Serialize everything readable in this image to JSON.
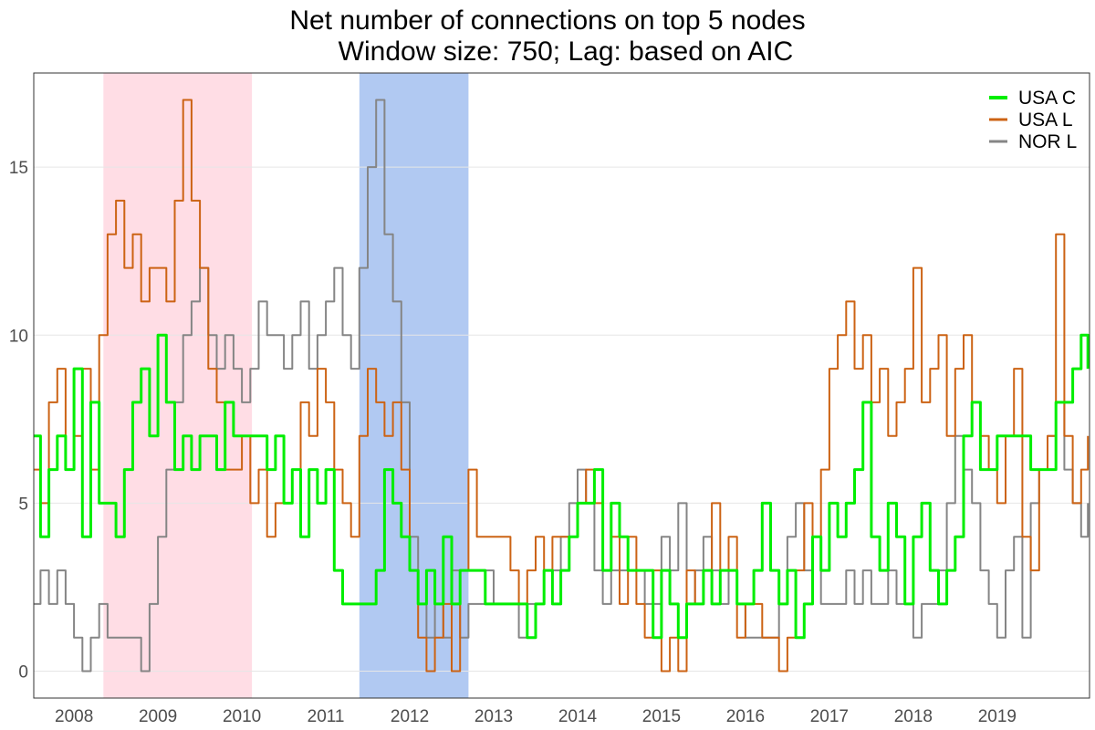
{
  "chart_data": {
    "type": "line",
    "title": "Net number of connections on top 5 nodes",
    "subtitle": "Window size: 750; Lag: based on AIC",
    "xlabel": "",
    "ylabel": "",
    "xlim": [
      2007.62,
      2020.2
    ],
    "ylim": [
      -0.8,
      17.8
    ],
    "y_ticks": [
      0,
      5,
      10,
      15
    ],
    "x_ticks": [
      {
        "label": "2008",
        "value": 2008.1
      },
      {
        "label": "2009",
        "value": 2009.1
      },
      {
        "label": "2010",
        "value": 2010.1
      },
      {
        "label": "2011",
        "value": 2011.1
      },
      {
        "label": "2012",
        "value": 2012.1
      },
      {
        "label": "2013",
        "value": 2013.1
      },
      {
        "label": "2014",
        "value": 2014.1
      },
      {
        "label": "2015",
        "value": 2015.1
      },
      {
        "label": "2016",
        "value": 2016.1
      },
      {
        "label": "2017",
        "value": 2017.1
      },
      {
        "label": "2018",
        "value": 2018.1
      },
      {
        "label": "2019",
        "value": 2019.1
      }
    ],
    "grid": "horizontal-major",
    "legend_position": "top-right",
    "shaded_regions": [
      {
        "x0": 2008.45,
        "x1": 2010.22,
        "color": "#ffdde5"
      },
      {
        "x0": 2011.5,
        "x1": 2012.8,
        "color": "#b1c9f2"
      }
    ],
    "series": [
      {
        "name": "USA C",
        "color": "#00ee00",
        "line_width": 3,
        "x": [
          2007.62,
          2007.7,
          2007.8,
          2007.9,
          2008.0,
          2008.1,
          2008.2,
          2008.3,
          2008.4,
          2008.5,
          2008.6,
          2008.7,
          2008.8,
          2008.9,
          2009.0,
          2009.1,
          2009.2,
          2009.3,
          2009.4,
          2009.5,
          2009.6,
          2009.7,
          2009.8,
          2009.9,
          2010.0,
          2010.1,
          2010.2,
          2010.3,
          2010.4,
          2010.5,
          2010.6,
          2010.7,
          2010.8,
          2010.9,
          2011.0,
          2011.1,
          2011.2,
          2011.3,
          2011.4,
          2011.5,
          2011.6,
          2011.7,
          2011.8,
          2011.9,
          2012.0,
          2012.1,
          2012.2,
          2012.3,
          2012.4,
          2012.5,
          2012.6,
          2012.7,
          2012.8,
          2012.9,
          2013.0,
          2013.1,
          2013.2,
          2013.3,
          2013.4,
          2013.5,
          2013.6,
          2013.7,
          2013.8,
          2013.9,
          2014.0,
          2014.1,
          2014.2,
          2014.3,
          2014.4,
          2014.5,
          2014.6,
          2014.7,
          2014.8,
          2014.9,
          2015.0,
          2015.1,
          2015.2,
          2015.3,
          2015.4,
          2015.5,
          2015.6,
          2015.7,
          2015.8,
          2015.9,
          2016.0,
          2016.1,
          2016.2,
          2016.3,
          2016.4,
          2016.5,
          2016.6,
          2016.7,
          2016.8,
          2016.9,
          2017.0,
          2017.1,
          2017.2,
          2017.3,
          2017.4,
          2017.5,
          2017.6,
          2017.7,
          2017.8,
          2017.9,
          2018.0,
          2018.1,
          2018.2,
          2018.3,
          2018.4,
          2018.5,
          2018.6,
          2018.7,
          2018.8,
          2018.9,
          2019.0,
          2019.1,
          2019.2,
          2019.3,
          2019.4,
          2019.5,
          2019.6,
          2019.7,
          2019.8,
          2019.9,
          2020.0,
          2020.1,
          2020.18
        ],
        "y": [
          7,
          4,
          6,
          7,
          6,
          9,
          4,
          8,
          5,
          5,
          4,
          6,
          8,
          9,
          7,
          10,
          8,
          6,
          7,
          6,
          7,
          7,
          6,
          8,
          7,
          7,
          7,
          7,
          6,
          7,
          5,
          6,
          4,
          6,
          5,
          6,
          3,
          2,
          2,
          2,
          2,
          3,
          6,
          5,
          4,
          3,
          2,
          3,
          2,
          4,
          2,
          3,
          3,
          3,
          2,
          2,
          2,
          2,
          2,
          1,
          2,
          3,
          2,
          3,
          4,
          5,
          5,
          6,
          3,
          5,
          4,
          3,
          3,
          3,
          1,
          3,
          2,
          1,
          2,
          2,
          3,
          2,
          3,
          3,
          2,
          2,
          3,
          5,
          3,
          2,
          3,
          1,
          2,
          4,
          3,
          5,
          4,
          5,
          6,
          8,
          4,
          3,
          5,
          4,
          2,
          4,
          5,
          3,
          2,
          3,
          4,
          7,
          8,
          6,
          6,
          7,
          7,
          7,
          7,
          6,
          6,
          6,
          8,
          8,
          9,
          10,
          9
        ]
      },
      {
        "name": "USA L",
        "color": "#cc6314",
        "line_width": 2,
        "x": [
          2007.62,
          2007.7,
          2007.8,
          2007.9,
          2008.0,
          2008.1,
          2008.2,
          2008.3,
          2008.4,
          2008.5,
          2008.6,
          2008.7,
          2008.8,
          2008.9,
          2009.0,
          2009.1,
          2009.2,
          2009.3,
          2009.4,
          2009.5,
          2009.6,
          2009.7,
          2009.8,
          2009.9,
          2010.0,
          2010.1,
          2010.2,
          2010.3,
          2010.4,
          2010.5,
          2010.6,
          2010.7,
          2010.8,
          2010.9,
          2011.0,
          2011.1,
          2011.2,
          2011.3,
          2011.4,
          2011.5,
          2011.6,
          2011.7,
          2011.8,
          2011.9,
          2012.0,
          2012.1,
          2012.2,
          2012.3,
          2012.4,
          2012.5,
          2012.6,
          2012.7,
          2012.8,
          2012.9,
          2013.0,
          2013.1,
          2013.2,
          2013.3,
          2013.4,
          2013.5,
          2013.6,
          2013.7,
          2013.8,
          2013.9,
          2014.0,
          2014.1,
          2014.2,
          2014.3,
          2014.4,
          2014.5,
          2014.6,
          2014.7,
          2014.8,
          2014.9,
          2015.0,
          2015.1,
          2015.2,
          2015.3,
          2015.4,
          2015.5,
          2015.6,
          2015.7,
          2015.8,
          2015.9,
          2016.0,
          2016.1,
          2016.2,
          2016.3,
          2016.4,
          2016.5,
          2016.6,
          2016.7,
          2016.8,
          2016.9,
          2017.0,
          2017.1,
          2017.2,
          2017.3,
          2017.4,
          2017.5,
          2017.6,
          2017.7,
          2017.8,
          2017.9,
          2018.0,
          2018.1,
          2018.2,
          2018.3,
          2018.4,
          2018.5,
          2018.6,
          2018.7,
          2018.8,
          2018.9,
          2019.0,
          2019.1,
          2019.2,
          2019.3,
          2019.4,
          2019.5,
          2019.6,
          2019.7,
          2019.8,
          2019.9,
          2020.0,
          2020.1,
          2020.18
        ],
        "y": [
          6,
          5,
          8,
          9,
          6,
          7,
          9,
          6,
          10,
          13,
          14,
          12,
          13,
          11,
          12,
          12,
          11,
          14,
          17,
          14,
          12,
          9,
          8,
          6,
          6,
          7,
          5,
          6,
          4,
          5,
          5,
          6,
          8,
          7,
          9,
          8,
          6,
          5,
          4,
          7,
          9,
          8,
          7,
          8,
          6,
          3,
          1,
          0,
          1,
          2,
          0,
          3,
          6,
          4,
          4,
          4,
          4,
          3,
          2,
          3,
          4,
          3,
          4,
          4,
          4,
          5,
          6,
          5,
          3,
          4,
          2,
          4,
          2,
          1,
          3,
          0,
          1,
          0,
          3,
          2,
          3,
          5,
          3,
          4,
          1,
          2,
          2,
          1,
          1,
          0,
          1,
          3,
          5,
          4,
          6,
          9,
          10,
          11,
          9,
          10,
          8,
          9,
          7,
          8,
          9,
          12,
          8,
          9,
          10,
          7,
          9,
          10,
          8,
          7,
          6,
          5,
          7,
          9,
          4,
          3,
          6,
          7,
          13,
          7,
          5,
          6,
          7
        ]
      },
      {
        "name": "NOR L",
        "color": "#858585",
        "line_width": 2,
        "x": [
          2007.62,
          2007.7,
          2007.8,
          2007.9,
          2008.0,
          2008.1,
          2008.2,
          2008.3,
          2008.4,
          2008.5,
          2008.6,
          2008.7,
          2008.8,
          2008.9,
          2009.0,
          2009.1,
          2009.2,
          2009.3,
          2009.4,
          2009.5,
          2009.6,
          2009.7,
          2009.8,
          2009.9,
          2010.0,
          2010.1,
          2010.2,
          2010.3,
          2010.4,
          2010.5,
          2010.6,
          2010.7,
          2010.8,
          2010.9,
          2011.0,
          2011.1,
          2011.2,
          2011.3,
          2011.4,
          2011.5,
          2011.6,
          2011.7,
          2011.8,
          2011.9,
          2012.0,
          2012.1,
          2012.2,
          2012.3,
          2012.4,
          2012.5,
          2012.6,
          2012.7,
          2012.8,
          2012.9,
          2013.0,
          2013.1,
          2013.2,
          2013.3,
          2013.4,
          2013.5,
          2013.6,
          2013.7,
          2013.8,
          2013.9,
          2014.0,
          2014.1,
          2014.2,
          2014.3,
          2014.4,
          2014.5,
          2014.6,
          2014.7,
          2014.8,
          2014.9,
          2015.0,
          2015.1,
          2015.2,
          2015.3,
          2015.4,
          2015.5,
          2015.6,
          2015.7,
          2015.8,
          2015.9,
          2016.0,
          2016.1,
          2016.2,
          2016.3,
          2016.4,
          2016.5,
          2016.6,
          2016.7,
          2016.8,
          2016.9,
          2017.0,
          2017.1,
          2017.2,
          2017.3,
          2017.4,
          2017.5,
          2017.6,
          2017.7,
          2017.8,
          2017.9,
          2018.0,
          2018.1,
          2018.2,
          2018.3,
          2018.4,
          2018.5,
          2018.6,
          2018.7,
          2018.8,
          2018.9,
          2019.0,
          2019.1,
          2019.2,
          2019.3,
          2019.4,
          2019.5,
          2019.6,
          2019.7,
          2019.8,
          2019.9,
          2020.0,
          2020.1,
          2020.18
        ],
        "y": [
          2,
          3,
          2,
          3,
          2,
          1,
          0,
          1,
          2,
          1,
          1,
          1,
          1,
          0,
          2,
          4,
          6,
          8,
          10,
          11,
          12,
          10,
          9,
          10,
          9,
          8,
          9,
          11,
          10,
          10,
          9,
          10,
          11,
          9,
          10,
          11,
          12,
          10,
          9,
          12,
          15,
          17,
          13,
          11,
          8,
          4,
          2,
          1,
          2,
          1,
          3,
          1,
          2,
          2,
          3,
          2,
          2,
          2,
          1,
          2,
          2,
          3,
          3,
          4,
          5,
          6,
          5,
          3,
          2,
          3,
          3,
          3,
          3,
          2,
          2,
          4,
          3,
          5,
          2,
          3,
          4,
          3,
          2,
          3,
          2,
          1,
          1,
          1,
          1,
          2,
          4,
          5,
          3,
          4,
          2,
          2,
          2,
          3,
          2,
          3,
          2,
          2,
          3,
          2,
          2,
          1,
          2,
          2,
          3,
          5,
          7,
          6,
          5,
          3,
          2,
          1,
          3,
          4,
          1,
          5,
          6,
          7,
          8,
          6,
          5,
          4,
          5
        ]
      }
    ]
  }
}
